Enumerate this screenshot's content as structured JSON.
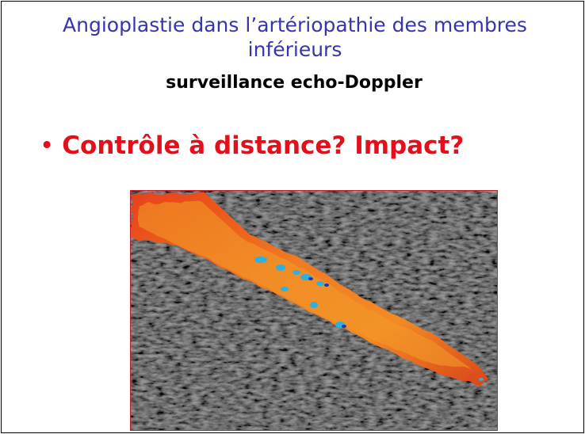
{
  "slide": {
    "title": "Angioplastie dans l’artériopathie des membres inférieurs",
    "subtitle": "surveillance echo-Doppler",
    "bullets": [
      "Contrôle à distance? Impact?"
    ]
  }
}
